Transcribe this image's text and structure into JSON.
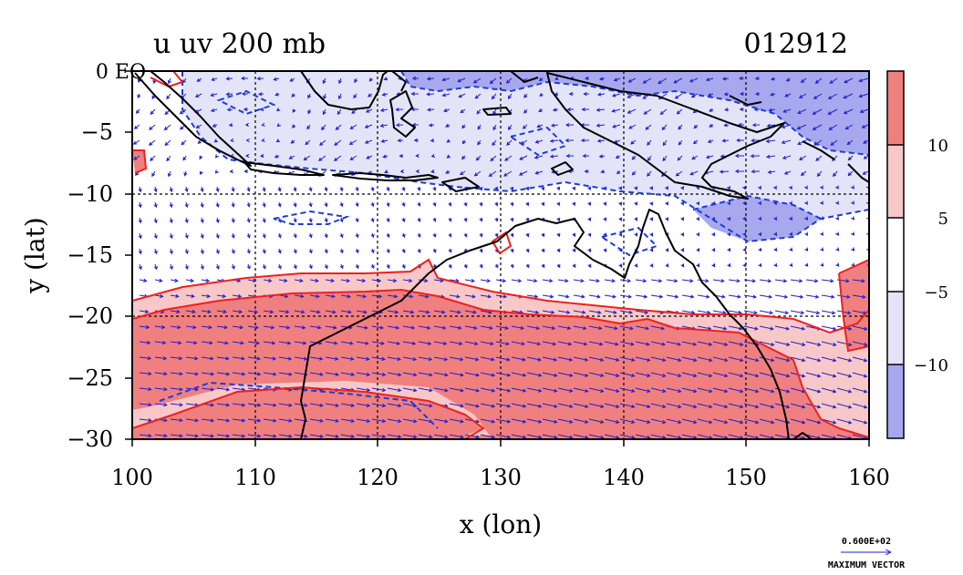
{
  "title_left": "u uv 200 mb",
  "title_right": "012912",
  "xlabel": "x (lon)",
  "ylabel": "y (lat)",
  "x_ticks": [
    "100",
    "110",
    "120",
    "130",
    "140",
    "150",
    "160"
  ],
  "y_ticks": [
    "0 EQ",
    "−5",
    "−10",
    "−15",
    "−20",
    "−25",
    "−30"
  ],
  "colorbar_labels": [
    "10",
    "5",
    "−5",
    "−10"
  ],
  "colorbar_colors": [
    "#f08080",
    "#f8c8c8",
    "#ffffff",
    "#e4e4f8",
    "#a8a8ee"
  ],
  "max_vector_value": "0.600E+02",
  "max_vector_label": "MAXIMUM VECTOR",
  "colors": {
    "coast": "#000000",
    "contour_pos": "#ee2020",
    "contour_neg": "#1e3cd8",
    "vector": "#2020cc",
    "grid": "#000000"
  },
  "chart_data": {
    "type": "heatmap",
    "variable": "u",
    "overlay": "uv wind vectors",
    "level": "200 mb",
    "date": "012912",
    "xlim": [
      100,
      160
    ],
    "ylim": [
      -30,
      0
    ],
    "grid": true,
    "contour_levels": [
      -10,
      -5,
      5,
      10
    ],
    "colorbar": "right"
  }
}
